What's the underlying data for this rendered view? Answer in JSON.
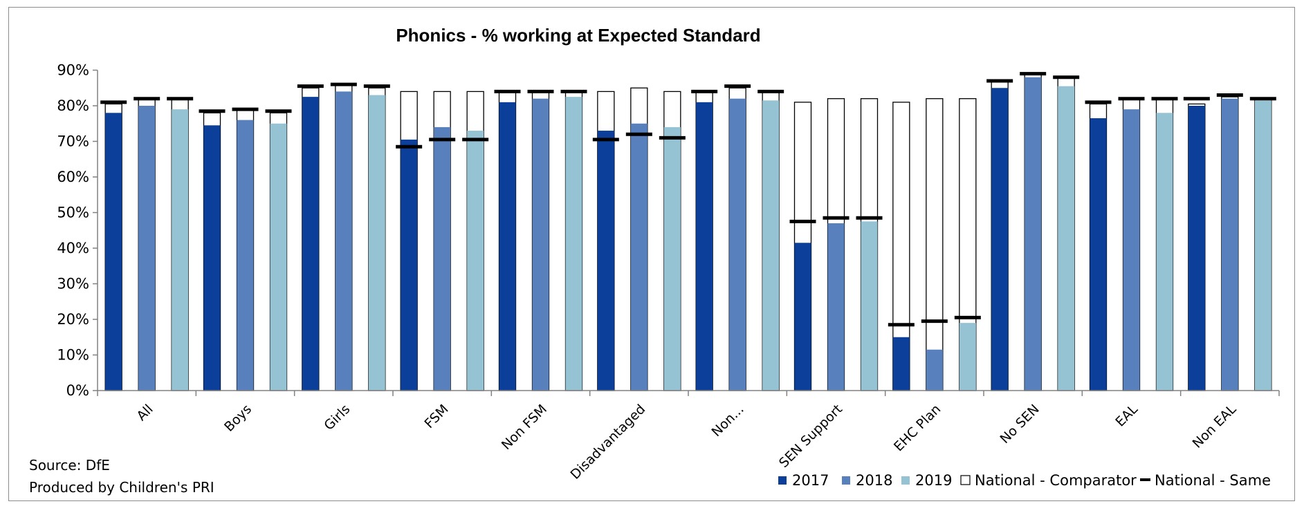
{
  "chart_data": {
    "type": "bar",
    "title": "Phonics - % working at Expected Standard",
    "xlabel": "",
    "ylabel": "",
    "ylim": [
      0,
      90
    ],
    "yticks": [
      "0%",
      "10%",
      "20%",
      "30%",
      "40%",
      "50%",
      "60%",
      "70%",
      "80%",
      "90%"
    ],
    "grid": false,
    "legend_position": "bottom-right",
    "categories": [
      "All",
      "Boys",
      "Girls",
      "FSM",
      "Non FSM",
      "Disadvantaged",
      "Non...",
      "SEN Support",
      "EHC Plan",
      "No SEN",
      "EAL",
      "Non EAL"
    ],
    "series": [
      {
        "name": "2017",
        "color": "#0b3f9a",
        "values": [
          78,
          74.5,
          82.5,
          70.5,
          81,
          73,
          81,
          41.5,
          15,
          85,
          76.5,
          80
        ],
        "comparator": [
          80.5,
          78,
          85,
          84,
          84,
          84,
          84,
          81,
          81,
          87,
          80.5,
          80.5
        ],
        "same": [
          81,
          78.5,
          85.5,
          68.5,
          84,
          70.5,
          84,
          47.5,
          18.5,
          87,
          81,
          82
        ]
      },
      {
        "name": "2018",
        "color": "#5880bd",
        "values": [
          80,
          76,
          84,
          74,
          82,
          75,
          82,
          47,
          11.5,
          88,
          79,
          82
        ],
        "comparator": [
          82,
          79,
          86,
          84,
          84,
          85,
          85,
          82,
          82,
          89,
          82,
          82.5
        ],
        "same": [
          82,
          79,
          86,
          70.5,
          84,
          72,
          85.5,
          48.5,
          19.5,
          89,
          82,
          83
        ]
      },
      {
        "name": "2019",
        "color": "#96c3d3",
        "values": [
          79,
          75,
          83,
          73,
          82.5,
          74,
          81.5,
          47.5,
          19,
          85.5,
          78,
          81.5
        ],
        "comparator": [
          82,
          78,
          85,
          84,
          84,
          84,
          84,
          82,
          82,
          88,
          82,
          82
        ],
        "same": [
          82,
          78.5,
          85.5,
          70.5,
          84,
          71,
          84,
          48.5,
          20.5,
          88,
          82,
          82
        ]
      }
    ],
    "legend": [
      {
        "label": "2017",
        "swatch": "#0b3f9a",
        "kind": "square"
      },
      {
        "label": "2018",
        "swatch": "#5880bd",
        "kind": "square"
      },
      {
        "label": "2019",
        "swatch": "#96c3d3",
        "kind": "square"
      },
      {
        "label": "National - Comparator",
        "swatch": "#ffffff",
        "kind": "square-outline"
      },
      {
        "label": "National - Same",
        "swatch": "#000000",
        "kind": "dash"
      }
    ]
  },
  "notes": {
    "source": "Source: DfE",
    "produced_by": "Produced by Children's PRI"
  }
}
